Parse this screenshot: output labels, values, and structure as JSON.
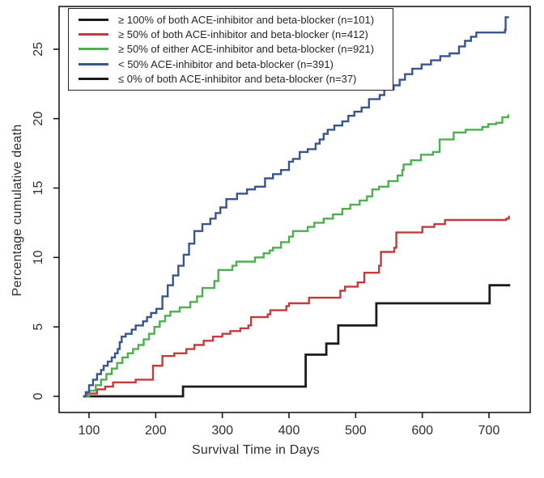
{
  "chart_data": {
    "type": "line",
    "subtype": "kaplan-meier-step-curves",
    "title": "",
    "xlabel": "Survival Time in Days",
    "ylabel": "Percentage cumulative death",
    "x_ticks": [
      100,
      200,
      300,
      400,
      500,
      600,
      700
    ],
    "y_ticks": [
      0,
      5,
      10,
      15,
      20,
      25
    ],
    "xlim": [
      55,
      762
    ],
    "ylim": [
      -1.2,
      28.2
    ],
    "grid": false,
    "legend_position": "top-left-inside",
    "axis_color": "#1a1a1a",
    "series": [
      {
        "name": "ge100-both",
        "label": "≥ 100%  of both ACE-inhibitor and beta-blocker (n=101)",
        "color": "#1b1b1b",
        "points": [
          [
            91,
            0
          ],
          [
            241,
            0.7
          ],
          [
            425,
            3.0
          ],
          [
            456,
            3.8
          ],
          [
            474,
            5.1
          ],
          [
            531,
            6.7
          ],
          [
            701,
            8.0
          ],
          [
            732,
            8.0
          ]
        ]
      },
      {
        "name": "ge50-both",
        "label": "≥ 50% of both ACE-inhibitor and beta-blocker (n=412)",
        "color": "#c23b3d",
        "points": [
          [
            91,
            0
          ],
          [
            98,
            0.2
          ],
          [
            112,
            0.5
          ],
          [
            124,
            0.7
          ],
          [
            136,
            1.0
          ],
          [
            170,
            1.2
          ],
          [
            196,
            2.2
          ],
          [
            210,
            2.9
          ],
          [
            228,
            3.1
          ],
          [
            246,
            3.4
          ],
          [
            258,
            3.7
          ],
          [
            272,
            4.0
          ],
          [
            286,
            4.3
          ],
          [
            300,
            4.5
          ],
          [
            312,
            4.7
          ],
          [
            327,
            4.9
          ],
          [
            339,
            5.1
          ],
          [
            343,
            5.7
          ],
          [
            368,
            5.9
          ],
          [
            372,
            6.2
          ],
          [
            396,
            6.5
          ],
          [
            400,
            6.7
          ],
          [
            430,
            7.1
          ],
          [
            477,
            7.6
          ],
          [
            484,
            7.9
          ],
          [
            503,
            8.2
          ],
          [
            513,
            8.9
          ],
          [
            535,
            9.4
          ],
          [
            538,
            10.4
          ],
          [
            558,
            10.7
          ],
          [
            561,
            11.8
          ],
          [
            600,
            12.2
          ],
          [
            618,
            12.4
          ],
          [
            634,
            12.7
          ],
          [
            726,
            12.8
          ],
          [
            730,
            13.0
          ]
        ]
      },
      {
        "name": "ge50-either",
        "label": "≥ 50% of either ACE-inhibitor and beta-blocker (n=921)",
        "color": "#4fae4f",
        "points": [
          [
            91,
            0
          ],
          [
            100,
            0.4
          ],
          [
            110,
            0.8
          ],
          [
            118,
            1.2
          ],
          [
            126,
            1.6
          ],
          [
            134,
            2.0
          ],
          [
            142,
            2.4
          ],
          [
            150,
            2.8
          ],
          [
            158,
            3.1
          ],
          [
            166,
            3.4
          ],
          [
            174,
            3.7
          ],
          [
            182,
            4.1
          ],
          [
            190,
            4.5
          ],
          [
            198,
            5.0
          ],
          [
            206,
            5.4
          ],
          [
            214,
            5.8
          ],
          [
            222,
            6.1
          ],
          [
            236,
            6.4
          ],
          [
            252,
            6.8
          ],
          [
            262,
            7.2
          ],
          [
            270,
            7.8
          ],
          [
            288,
            8.3
          ],
          [
            294,
            9.1
          ],
          [
            315,
            9.4
          ],
          [
            321,
            9.7
          ],
          [
            349,
            10.0
          ],
          [
            362,
            10.3
          ],
          [
            371,
            10.5
          ],
          [
            376,
            10.7
          ],
          [
            388,
            11.1
          ],
          [
            400,
            11.5
          ],
          [
            406,
            11.9
          ],
          [
            428,
            12.2
          ],
          [
            438,
            12.5
          ],
          [
            452,
            12.8
          ],
          [
            466,
            13.1
          ],
          [
            480,
            13.5
          ],
          [
            492,
            13.8
          ],
          [
            506,
            14.1
          ],
          [
            517,
            14.4
          ],
          [
            525,
            14.9
          ],
          [
            535,
            15.1
          ],
          [
            549,
            15.5
          ],
          [
            563,
            15.9
          ],
          [
            570,
            16.3
          ],
          [
            572,
            16.7
          ],
          [
            583,
            17.0
          ],
          [
            598,
            17.4
          ],
          [
            616,
            17.6
          ],
          [
            626,
            18.5
          ],
          [
            647,
            19.0
          ],
          [
            665,
            19.2
          ],
          [
            690,
            19.4
          ],
          [
            699,
            19.6
          ],
          [
            711,
            19.7
          ],
          [
            720,
            20.1
          ],
          [
            729,
            20.3
          ]
        ]
      },
      {
        "name": "lt50",
        "label": "< 50% ACE-inhibitor and beta-blocker  (n=391)",
        "color": "#39558c",
        "points": [
          [
            91,
            0
          ],
          [
            95,
            0.3
          ],
          [
            100,
            0.8
          ],
          [
            106,
            1.2
          ],
          [
            112,
            1.6
          ],
          [
            118,
            1.9
          ],
          [
            122,
            2.2
          ],
          [
            128,
            2.5
          ],
          [
            134,
            2.8
          ],
          [
            139,
            3.1
          ],
          [
            143,
            3.4
          ],
          [
            146,
            3.9
          ],
          [
            149,
            4.3
          ],
          [
            155,
            4.5
          ],
          [
            164,
            4.8
          ],
          [
            170,
            5.1
          ],
          [
            181,
            5.4
          ],
          [
            187,
            5.7
          ],
          [
            193,
            6.0
          ],
          [
            201,
            6.3
          ],
          [
            210,
            7.2
          ],
          [
            218,
            8.0
          ],
          [
            226,
            8.7
          ],
          [
            234,
            9.4
          ],
          [
            242,
            10.2
          ],
          [
            250,
            11.0
          ],
          [
            258,
            11.9
          ],
          [
            270,
            12.4
          ],
          [
            282,
            12.8
          ],
          [
            290,
            13.2
          ],
          [
            297,
            13.6
          ],
          [
            306,
            14.2
          ],
          [
            322,
            14.6
          ],
          [
            337,
            14.9
          ],
          [
            349,
            15.1
          ],
          [
            364,
            15.7
          ],
          [
            376,
            16.0
          ],
          [
            388,
            16.3
          ],
          [
            400,
            16.9
          ],
          [
            406,
            17.1
          ],
          [
            416,
            17.6
          ],
          [
            428,
            17.8
          ],
          [
            440,
            18.2
          ],
          [
            446,
            18.5
          ],
          [
            452,
            18.9
          ],
          [
            458,
            19.2
          ],
          [
            468,
            19.5
          ],
          [
            480,
            19.8
          ],
          [
            489,
            20.2
          ],
          [
            498,
            20.5
          ],
          [
            509,
            20.8
          ],
          [
            520,
            21.4
          ],
          [
            536,
            21.7
          ],
          [
            543,
            22.1
          ],
          [
            557,
            22.4
          ],
          [
            566,
            22.8
          ],
          [
            574,
            23.2
          ],
          [
            585,
            23.6
          ],
          [
            599,
            23.9
          ],
          [
            613,
            24.2
          ],
          [
            627,
            24.5
          ],
          [
            641,
            24.7
          ],
          [
            655,
            25.2
          ],
          [
            664,
            25.6
          ],
          [
            673,
            25.9
          ],
          [
            681,
            26.2
          ],
          [
            724,
            26.4
          ],
          [
            725,
            27.3
          ],
          [
            730,
            27.3
          ]
        ]
      },
      {
        "name": "le0-both",
        "label": "≤ 0% of both ACE-inhibitor and beta-blocker  (n=37)",
        "color": "#1b1b1b",
        "points": [],
        "note": "black curve not separately distinguishable in the image (coincides with the other black step curve)"
      }
    ]
  }
}
